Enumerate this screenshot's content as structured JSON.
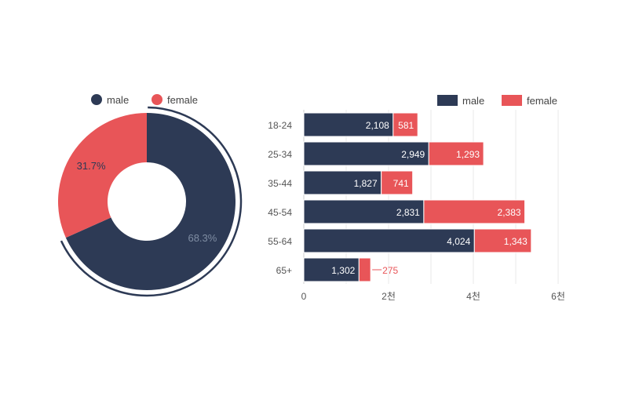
{
  "colors": {
    "male": "#2d3a55",
    "female": "#e85558",
    "axis_text": "#555555",
    "grid": "#e8e8e8",
    "pie_label_male": "#7f8da3",
    "pie_label_female": "#2d3a55"
  },
  "chart_data": [
    {
      "type": "pie",
      "variant": "donut",
      "legend": {
        "position": "top",
        "items": [
          "male",
          "female"
        ]
      },
      "slices": [
        {
          "name": "male",
          "value": 68.3,
          "label": "68.3%"
        },
        {
          "name": "female",
          "value": 31.7,
          "label": "31.7%"
        }
      ]
    },
    {
      "type": "bar",
      "orientation": "horizontal",
      "stacked": true,
      "legend": {
        "position": "top-right",
        "items": [
          "male",
          "female"
        ]
      },
      "categories": [
        "18-24",
        "25-34",
        "35-44",
        "45-54",
        "55-64",
        "65+"
      ],
      "series": [
        {
          "name": "male",
          "values": [
            2108,
            2949,
            1827,
            2831,
            4024,
            1302
          ],
          "labels": [
            "2,108",
            "2,949",
            "1,827",
            "2,831",
            "4,024",
            "1,302"
          ]
        },
        {
          "name": "female",
          "values": [
            581,
            1293,
            741,
            2383,
            1343,
            275
          ],
          "labels": [
            "581",
            "1,293",
            "741",
            "2,383",
            "1,343",
            "275"
          ]
        }
      ],
      "xlim": [
        0,
        6000
      ],
      "xticks": [
        {
          "value": 0,
          "label": "0"
        },
        {
          "value": 2000,
          "label": "2천"
        },
        {
          "value": 4000,
          "label": "4천"
        },
        {
          "value": 6000,
          "label": "6천"
        }
      ],
      "grid": true
    }
  ]
}
